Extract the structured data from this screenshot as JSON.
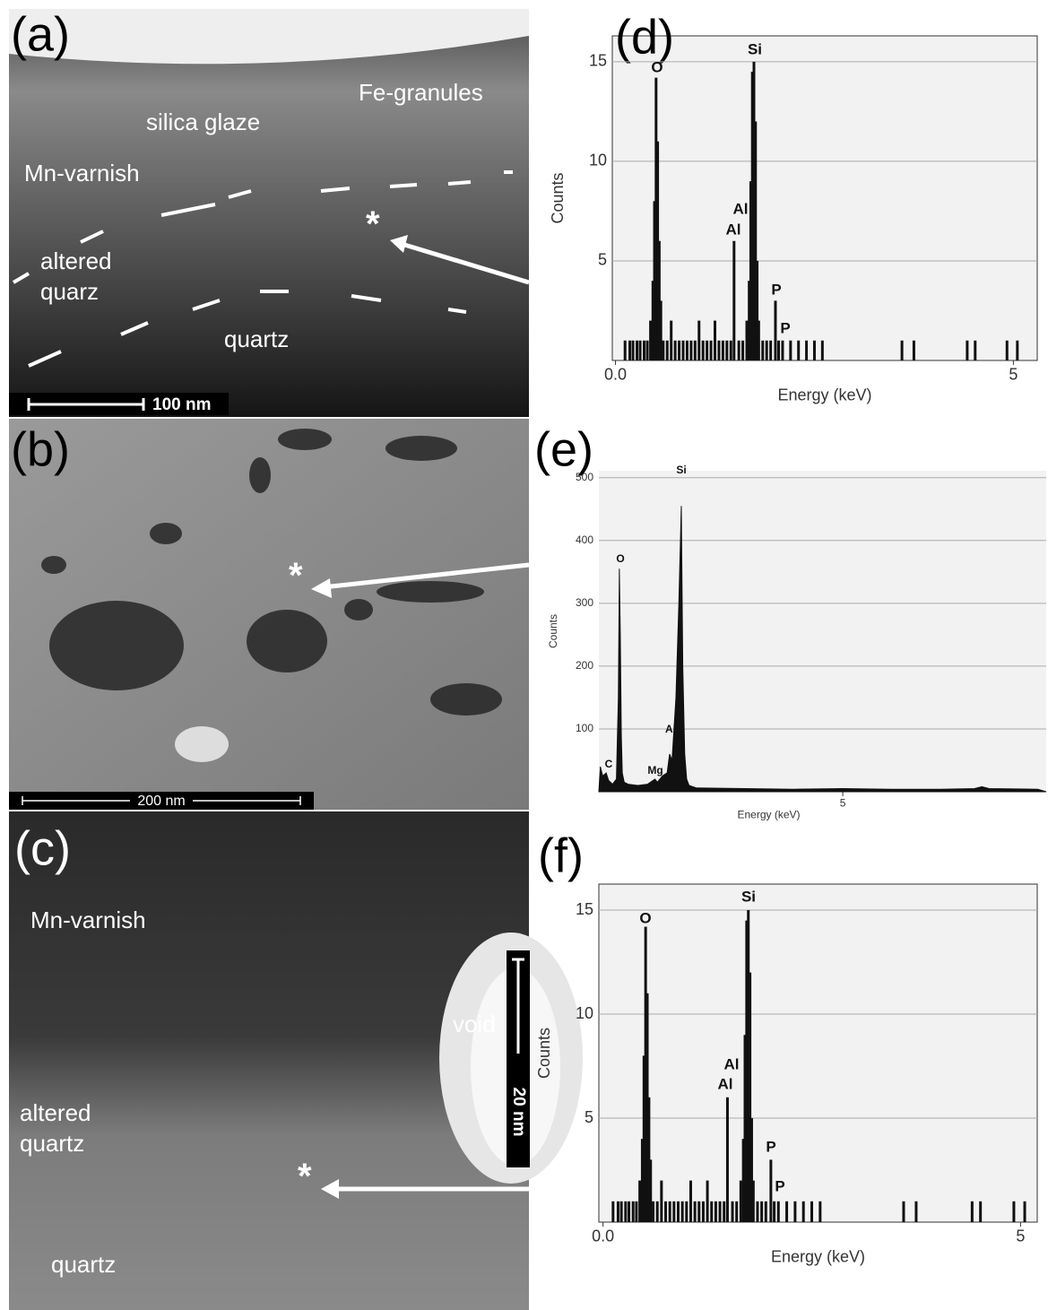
{
  "panels": [
    {
      "label": "(a)",
      "annotations": [
        "Fe-granules",
        "silica glaze",
        "Mn-varnish",
        "altered quarz",
        "quartz",
        "*"
      ],
      "scale_bar": "100 nm"
    },
    {
      "label": "(b)",
      "annotations": [
        "*"
      ],
      "scale_bar": "200 nm"
    },
    {
      "label": "(c)",
      "annotations": [
        "Mn-varnish",
        "void",
        "altered quartz",
        "quartz",
        "*"
      ],
      "scale_bar": "20 nm"
    }
  ],
  "chart_data": [
    {
      "type": "bar",
      "panel_label": "(d)",
      "x_label": "Energy (keV)",
      "y_label": "Counts",
      "color": "#111111",
      "xlim": [
        -0.04,
        5.3
      ],
      "ylim": [
        0,
        16.3
      ],
      "xticks": [
        {
          "value": 0,
          "label": "0.0"
        },
        5
      ],
      "yticks": [
        5,
        10,
        15
      ],
      "peak_labels": [
        "O",
        "Si",
        "Al",
        "Al",
        "P",
        "P"
      ],
      "x": [
        0.12,
        0.18,
        0.22,
        0.27,
        0.31,
        0.36,
        0.4,
        0.44,
        0.47,
        0.49,
        0.51,
        0.53,
        0.55,
        0.57,
        0.6,
        0.65,
        0.7,
        0.75,
        0.8,
        0.85,
        0.9,
        0.95,
        1.0,
        1.05,
        1.1,
        1.15,
        1.2,
        1.25,
        1.3,
        1.35,
        1.4,
        1.45,
        1.49,
        1.55,
        1.6,
        1.65,
        1.68,
        1.7,
        1.72,
        1.74,
        1.76,
        1.78,
        1.8,
        1.85,
        1.9,
        1.95,
        2.01,
        2.05,
        2.1,
        2.2,
        2.3,
        2.4,
        2.5,
        2.6,
        3.6,
        3.75,
        4.42,
        4.52,
        4.92,
        5.05
      ],
      "values": [
        1,
        1,
        1,
        1,
        1,
        1,
        1,
        2,
        4,
        8,
        14.2,
        11,
        6,
        3,
        1,
        1,
        2,
        1,
        1,
        1,
        1,
        1,
        1,
        2,
        1,
        1,
        1,
        2,
        1,
        1,
        1,
        1,
        6,
        1,
        1,
        2,
        4,
        9,
        14.5,
        15,
        12,
        5,
        2,
        1,
        1,
        1,
        3,
        1,
        1,
        1,
        1,
        1,
        1,
        1,
        1,
        1,
        1,
        1,
        1,
        1
      ]
    },
    {
      "type": "line",
      "panel_label": "(e)",
      "x_label": "Energy (keV)",
      "y_label": "Counts",
      "color": "#111111",
      "xlim": [
        0,
        9.17
      ],
      "ylim": [
        0,
        511
      ],
      "xticks": [
        5
      ],
      "yticks": [
        100,
        200,
        300,
        400,
        500
      ],
      "peak_labels": [
        "O",
        "Si",
        "Al",
        "C",
        "Mg"
      ],
      "x": [
        0,
        0.03,
        0.08,
        0.15,
        0.2,
        0.28,
        0.36,
        0.4,
        0.42,
        0.44,
        0.46,
        0.48,
        0.52,
        0.6,
        0.8,
        1.0,
        1.15,
        1.2,
        1.3,
        1.4,
        1.45,
        1.5,
        1.58,
        1.64,
        1.69,
        1.72,
        1.76,
        1.8,
        1.85,
        2.0,
        3.0,
        4.0,
        5.0,
        6.0,
        7.0,
        7.7,
        7.85,
        8.0,
        9.0,
        9.17
      ],
      "values": [
        0,
        40,
        25,
        30,
        18,
        12,
        20,
        150,
        355,
        250,
        90,
        30,
        15,
        12,
        10,
        12,
        20,
        15,
        25,
        30,
        60,
        50,
        150,
        300,
        455,
        200,
        60,
        20,
        10,
        6,
        5,
        4,
        5,
        4,
        4,
        5,
        8,
        5,
        4,
        0
      ]
    },
    {
      "type": "bar",
      "panel_label": "(f)",
      "x_label": "Energy (keV)",
      "y_label": "Counts",
      "color": "#111111",
      "xlim": [
        -0.05,
        5.2
      ],
      "ylim": [
        0,
        16.25
      ],
      "xticks": [
        {
          "value": 0,
          "label": "0.0"
        },
        5
      ],
      "yticks": [
        5,
        10,
        15
      ],
      "peak_labels": [
        "O",
        "Si",
        "Al",
        "Al",
        "P",
        "P"
      ],
      "x": [
        0.12,
        0.18,
        0.22,
        0.27,
        0.31,
        0.36,
        0.4,
        0.44,
        0.47,
        0.49,
        0.51,
        0.53,
        0.55,
        0.57,
        0.6,
        0.65,
        0.7,
        0.75,
        0.8,
        0.85,
        0.9,
        0.95,
        1.0,
        1.05,
        1.1,
        1.15,
        1.2,
        1.25,
        1.3,
        1.35,
        1.4,
        1.45,
        1.49,
        1.55,
        1.6,
        1.65,
        1.68,
        1.7,
        1.72,
        1.74,
        1.76,
        1.78,
        1.8,
        1.85,
        1.9,
        1.95,
        2.01,
        2.05,
        2.1,
        2.2,
        2.3,
        2.4,
        2.5,
        2.6,
        3.6,
        3.75,
        4.42,
        4.52,
        4.92,
        5.05
      ],
      "values": [
        1,
        1,
        1,
        1,
        1,
        1,
        1,
        2,
        4,
        8,
        14.2,
        11,
        6,
        3,
        1,
        1,
        2,
        1,
        1,
        1,
        1,
        1,
        1,
        2,
        1,
        1,
        1,
        2,
        1,
        1,
        1,
        1,
        6,
        1,
        1,
        2,
        4,
        9,
        14.5,
        15,
        12,
        5,
        2,
        1,
        1,
        1,
        3,
        1,
        1,
        1,
        1,
        1,
        1,
        1,
        1,
        1,
        1,
        1,
        1,
        1
      ]
    }
  ]
}
